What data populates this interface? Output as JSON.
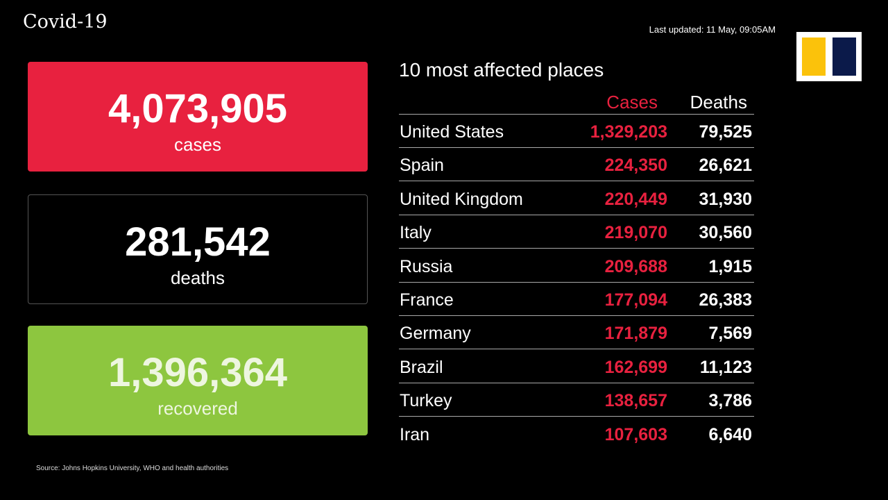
{
  "header": {
    "title": "Covid-19",
    "last_updated": "Last updated: 11 May, 09:05AM"
  },
  "cards": [
    {
      "number": "4,073,905",
      "label": "cases"
    },
    {
      "number": "281,542",
      "label": "deaths"
    },
    {
      "number": "1,396,364",
      "label": "recovered"
    }
  ],
  "table": {
    "title": "10 most affected places",
    "columns": [
      "Cases",
      "Deaths"
    ],
    "rows": [
      [
        "United States",
        "1,329,203",
        "79,525"
      ],
      [
        "Spain",
        "224,350",
        "26,621"
      ],
      [
        "United Kingdom",
        "220,449",
        "31,930"
      ],
      [
        "Italy",
        "219,070",
        "30,560"
      ],
      [
        "Russia",
        "209,688",
        "1,915"
      ],
      [
        "France",
        "177,094",
        "26,383"
      ],
      [
        "Germany",
        "171,879",
        "7,569"
      ],
      [
        "Brazil",
        "162,699",
        "11,123"
      ],
      [
        "Turkey",
        "138,657",
        "3,786"
      ],
      [
        "Iran",
        "107,603",
        "6,640"
      ]
    ]
  },
  "footer": {
    "source": "Source: Johns Hopkins University, WHO and health authorities"
  }
}
